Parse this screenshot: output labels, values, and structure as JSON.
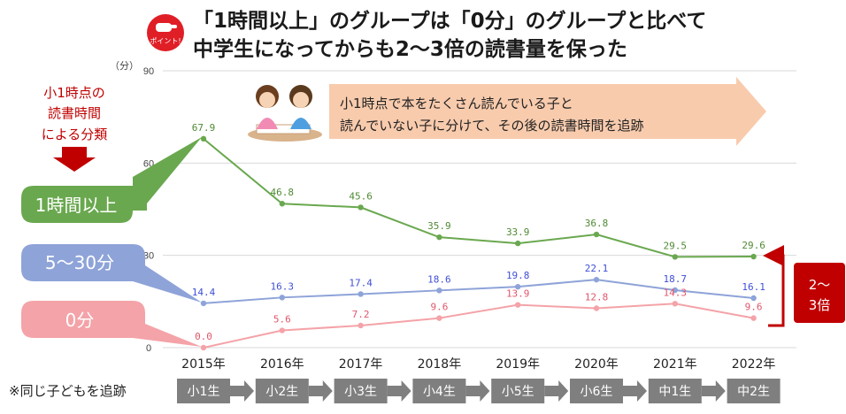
{
  "header": {
    "badge_icon": "pointing-hand-icon",
    "badge_label": "ポイント!",
    "title_line1": "「1時間以上」のグループは「0分」のグループと比べて",
    "title_line2": "中学生になってからも2〜3倍の読書量を保った"
  },
  "sidebar": {
    "classification_label_lines": [
      "小1時点の",
      "読書時間",
      "による分類"
    ]
  },
  "banner": {
    "icon": "children-reading-icon",
    "line1": "小1時点で本をたくさん読んでいる子と",
    "line2": "読んでいない子に分けて、その後の読書時間を追跡"
  },
  "ratio_callout": {
    "line1": "2〜",
    "line2": "3倍"
  },
  "footer": {
    "note": "※同じ子どもを追跡",
    "grades": [
      "小1生",
      "小2生",
      "小3生",
      "小4生",
      "小5生",
      "小6生",
      "中1生",
      "中2生"
    ]
  },
  "colors": {
    "green": "#6aa84f",
    "blue": "#8ea3d8",
    "pink": "#f4a3a8",
    "red_marker": "#c00000",
    "badge_red": "#e01e26",
    "banner_fill": "#f8cbad"
  },
  "chart_data": {
    "type": "line",
    "ylabel": "（分）",
    "ylim": [
      0,
      90
    ],
    "yticks": [
      0,
      30,
      60,
      90
    ],
    "grid": true,
    "categories": [
      "2015年",
      "2016年",
      "2017年",
      "2018年",
      "2019年",
      "2020年",
      "2021年",
      "2022年"
    ],
    "series": [
      {
        "name": "1時間以上",
        "values": [
          67.9,
          46.8,
          45.6,
          35.9,
          33.9,
          36.8,
          29.5,
          29.6
        ],
        "labels": [
          "67.9",
          "46.8",
          "45.6",
          "35.9",
          "33.9",
          "36.8",
          "29.5",
          "29.6"
        ]
      },
      {
        "name": "5〜30分",
        "values": [
          14.4,
          16.3,
          17.4,
          18.6,
          19.8,
          22.1,
          18.7,
          16.1
        ],
        "labels": [
          "14.4",
          "16.3",
          "17.4",
          "18.6",
          "19.8",
          "22.1",
          "18.7",
          "16.1"
        ]
      },
      {
        "name": "0分",
        "values": [
          0.0,
          5.6,
          7.2,
          9.6,
          13.9,
          12.8,
          14.3,
          9.6
        ],
        "labels": [
          "0.0",
          "5.6",
          "7.2",
          "9.6",
          "13.9",
          "12.8",
          "14.3",
          "9.6"
        ]
      }
    ]
  }
}
